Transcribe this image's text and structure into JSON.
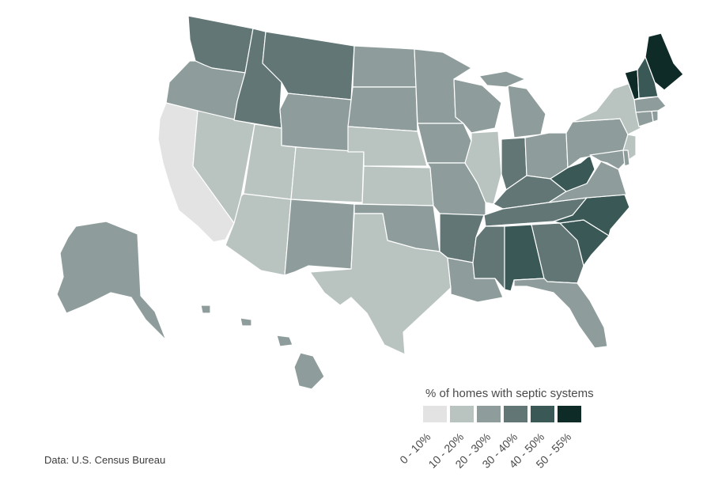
{
  "map": {
    "region": "United States",
    "source": "Data: U.S. Census Bureau",
    "legend": {
      "title": "% of homes with septic systems",
      "bins": [
        {
          "label": "0 - 10%",
          "color": "#e3e3e3"
        },
        {
          "label": "10 - 20%",
          "color": "#b9c4c1"
        },
        {
          "label": "20 - 30%",
          "color": "#8e9d9b"
        },
        {
          "label": "30 - 40%",
          "color": "#617675"
        },
        {
          "label": "40 - 50%",
          "color": "#3a5856"
        },
        {
          "label": "50 - 55%",
          "color": "#0e2b28"
        }
      ]
    },
    "states": [
      {
        "name": "Washington",
        "bin": 3
      },
      {
        "name": "Oregon",
        "bin": 2
      },
      {
        "name": "California",
        "bin": 0
      },
      {
        "name": "Nevada",
        "bin": 1
      },
      {
        "name": "Idaho",
        "bin": 3
      },
      {
        "name": "Montana",
        "bin": 3
      },
      {
        "name": "Wyoming",
        "bin": 2
      },
      {
        "name": "Utah",
        "bin": 1
      },
      {
        "name": "Arizona",
        "bin": 1
      },
      {
        "name": "Colorado",
        "bin": 1
      },
      {
        "name": "New Mexico",
        "bin": 2
      },
      {
        "name": "North Dakota",
        "bin": 2
      },
      {
        "name": "South Dakota",
        "bin": 2
      },
      {
        "name": "Nebraska",
        "bin": 1
      },
      {
        "name": "Kansas",
        "bin": 1
      },
      {
        "name": "Oklahoma",
        "bin": 2
      },
      {
        "name": "Texas",
        "bin": 1
      },
      {
        "name": "Minnesota",
        "bin": 2
      },
      {
        "name": "Iowa",
        "bin": 2
      },
      {
        "name": "Missouri",
        "bin": 2
      },
      {
        "name": "Arkansas",
        "bin": 3
      },
      {
        "name": "Louisiana",
        "bin": 2
      },
      {
        "name": "Wisconsin",
        "bin": 2
      },
      {
        "name": "Illinois",
        "bin": 1
      },
      {
        "name": "Michigan",
        "bin": 2
      },
      {
        "name": "Indiana",
        "bin": 3
      },
      {
        "name": "Ohio",
        "bin": 2
      },
      {
        "name": "Kentucky",
        "bin": 3
      },
      {
        "name": "Tennessee",
        "bin": 3
      },
      {
        "name": "Mississippi",
        "bin": 3
      },
      {
        "name": "Alabama",
        "bin": 4
      },
      {
        "name": "Georgia",
        "bin": 3
      },
      {
        "name": "Florida",
        "bin": 2
      },
      {
        "name": "South Carolina",
        "bin": 4
      },
      {
        "name": "North Carolina",
        "bin": 4
      },
      {
        "name": "Virginia",
        "bin": 2
      },
      {
        "name": "West Virginia",
        "bin": 4
      },
      {
        "name": "Pennsylvania",
        "bin": 2
      },
      {
        "name": "New York",
        "bin": 1
      },
      {
        "name": "New Jersey",
        "bin": 1
      },
      {
        "name": "Delaware",
        "bin": 2
      },
      {
        "name": "Maryland",
        "bin": 2
      },
      {
        "name": "Connecticut",
        "bin": 2
      },
      {
        "name": "Rhode Island",
        "bin": 2
      },
      {
        "name": "Massachusetts",
        "bin": 2
      },
      {
        "name": "Vermont",
        "bin": 5
      },
      {
        "name": "New Hampshire",
        "bin": 4
      },
      {
        "name": "Maine",
        "bin": 5
      },
      {
        "name": "Alaska",
        "bin": 2
      },
      {
        "name": "Hawaii",
        "bin": 2
      }
    ]
  }
}
